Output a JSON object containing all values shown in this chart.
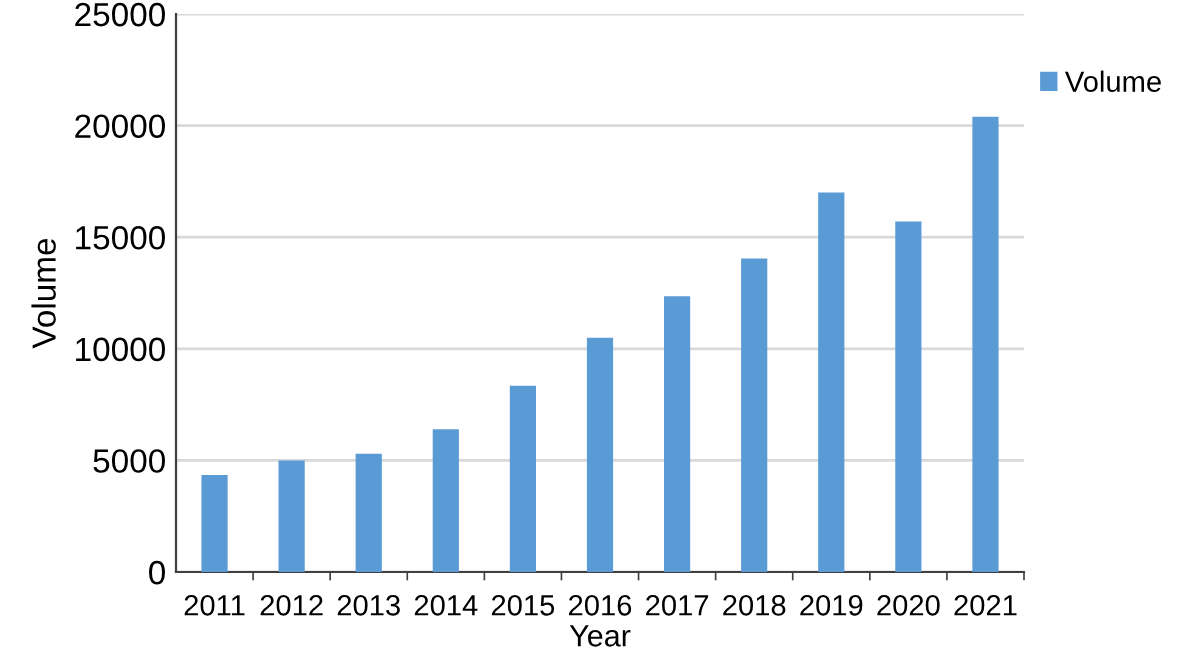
{
  "chart_data": {
    "type": "bar",
    "xlabel": "Year",
    "ylabel": "Volume",
    "categories": [
      "2011",
      "2012",
      "2013",
      "2014",
      "2015",
      "2016",
      "2017",
      "2018",
      "2019",
      "2020",
      "2021"
    ],
    "series": [
      {
        "name": "Volume",
        "color": "#5b9bd5",
        "values": [
          4350,
          5000,
          5300,
          6400,
          8350,
          10500,
          12350,
          14050,
          17000,
          15700,
          20400
        ]
      }
    ],
    "ylim": [
      0,
      25000
    ],
    "yticks": [
      0,
      5000,
      10000,
      15000,
      20000,
      25000
    ],
    "grid": "y",
    "legend": "top right"
  }
}
